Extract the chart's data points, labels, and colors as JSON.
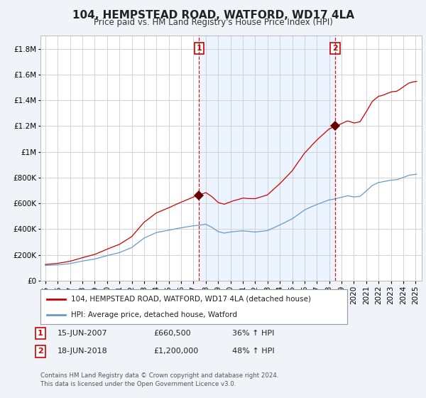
{
  "title": "104, HEMPSTEAD ROAD, WATFORD, WD17 4LA",
  "subtitle": "Price paid vs. HM Land Registry's House Price Index (HPI)",
  "background_color": "#f0f4f8",
  "plot_bg_color": "#ffffff",
  "red_color": "#cc0000",
  "blue_color": "#6699cc",
  "blue_fill_color": "#ddeeff",
  "ylim": [
    0,
    1900000
  ],
  "yticks": [
    0,
    200000,
    400000,
    600000,
    800000,
    1000000,
    1200000,
    1400000,
    1600000,
    1800000
  ],
  "xlim_left": 1994.6,
  "xlim_right": 2025.5,
  "transaction1_date": "15-JUN-2007",
  "transaction1_price": 660500,
  "transaction1_hpi": "36% ↑ HPI",
  "transaction2_date": "18-JUN-2018",
  "transaction2_price": 1200000,
  "transaction2_hpi": "48% ↑ HPI",
  "legend_label_red": "104, HEMPSTEAD ROAD, WATFORD, WD17 4LA (detached house)",
  "legend_label_blue": "HPI: Average price, detached house, Watford",
  "footer": "Contains HM Land Registry data © Crown copyright and database right 2024.\nThis data is licensed under the Open Government Licence v3.0.",
  "vline1_x": 2007.46,
  "vline2_x": 2018.46,
  "marker1_x": 2007.46,
  "marker1_y": 660500,
  "marker2_x": 2018.46,
  "marker2_y": 1200000
}
